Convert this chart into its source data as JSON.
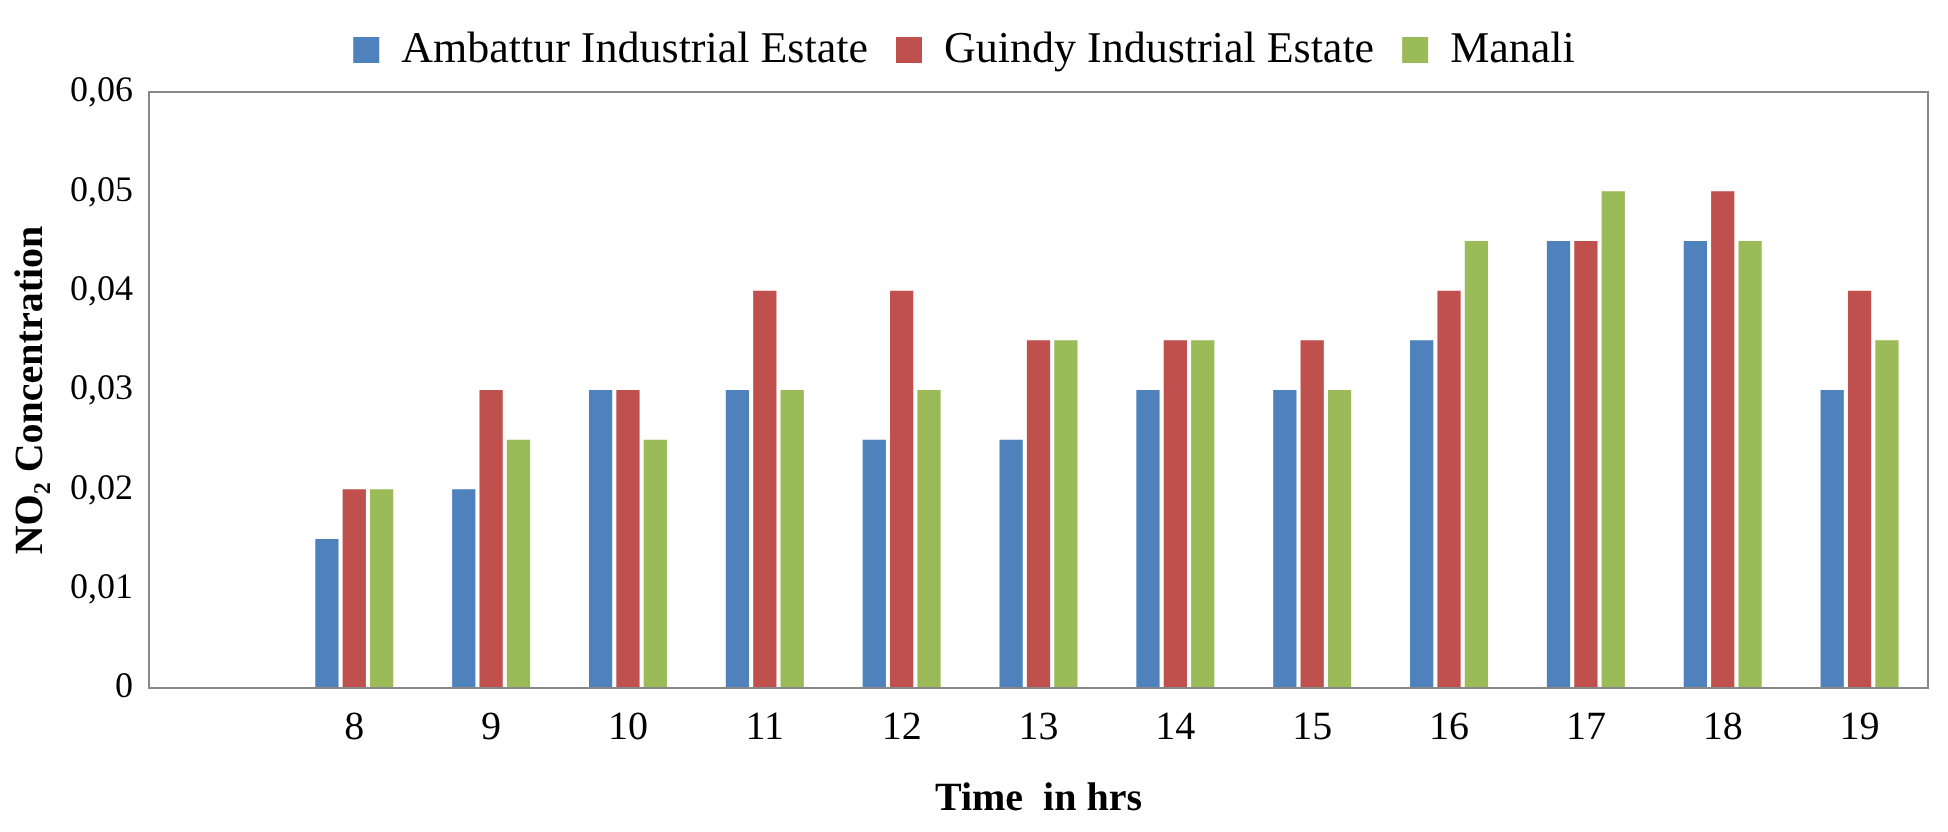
{
  "chart_data": {
    "type": "bar",
    "xlabel": "Time  in hrs",
    "ylabel": "NO₂ Concentration",
    "categories": [
      null,
      "8",
      "9",
      "10",
      "11",
      "12",
      "13",
      "14",
      "15",
      "16",
      "17",
      "18",
      "19"
    ],
    "series": [
      {
        "name": "Ambattur Industrial Estate",
        "color": "#4f81bd",
        "values": [
          null,
          0.015,
          0.02,
          0.03,
          0.03,
          0.025,
          0.025,
          0.03,
          0.03,
          0.035,
          0.045,
          0.045,
          0.03
        ]
      },
      {
        "name": "Guindy Industrial Estate",
        "color": "#c0504d",
        "values": [
          null,
          0.02,
          0.03,
          0.03,
          0.04,
          0.04,
          0.035,
          0.035,
          0.035,
          0.04,
          0.045,
          0.05,
          0.04
        ]
      },
      {
        "name": "Manali",
        "color": "#9bbb59",
        "values": [
          null,
          0.02,
          0.025,
          0.025,
          0.03,
          0.03,
          0.035,
          0.035,
          0.03,
          0.045,
          0.05,
          0.045,
          0.035
        ]
      }
    ],
    "ylim": [
      0,
      0.06
    ],
    "yticks": [
      0,
      {
        "value": 0.01,
        "label": "0,01"
      },
      {
        "value": 0.02,
        "label": "0,02"
      },
      {
        "value": 0.03,
        "label": "0,03"
      },
      {
        "value": 0.04,
        "label": "0,04"
      },
      {
        "value": 0.05,
        "label": "0,05"
      },
      {
        "value": 0.06,
        "label": "0,06"
      }
    ],
    "grid": false,
    "legend": "top"
  }
}
